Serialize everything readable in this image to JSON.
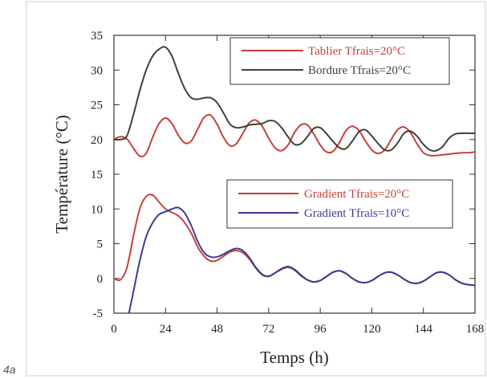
{
  "figure_label": "4a",
  "chart_data": {
    "type": "line",
    "title": "",
    "xlabel": "Temps (h)",
    "ylabel": "Température (°C)",
    "xlim": [
      0,
      168
    ],
    "ylim": [
      -5,
      35
    ],
    "xticks": [
      0,
      24,
      48,
      72,
      96,
      120,
      144,
      168
    ],
    "yticks": [
      -5,
      0,
      5,
      10,
      15,
      20,
      25,
      30,
      35
    ],
    "grid": false,
    "legends": [
      {
        "placement": "top-right",
        "entries": [
          "Tablier Tfrais=20°C",
          "Bordure Tfrais=20°C"
        ]
      },
      {
        "placement": "middle-right",
        "entries": [
          "Gradient Tfrais=20°C",
          "Gradient Tfrais=10°C"
        ]
      }
    ],
    "series": [
      {
        "name": "Tablier Tfrais=20°C",
        "color": "#c8403a",
        "x": [
          0,
          3,
          6,
          9,
          12,
          15,
          18,
          21,
          24,
          27,
          30,
          33,
          36,
          39,
          42,
          45,
          48,
          51,
          54,
          57,
          60,
          63,
          66,
          69,
          72,
          75,
          78,
          81,
          84,
          87,
          90,
          93,
          96,
          99,
          102,
          105,
          108,
          111,
          114,
          117,
          120,
          123,
          126,
          129,
          132,
          135,
          138,
          141,
          144,
          147,
          150,
          153,
          156,
          159,
          162,
          165,
          168
        ],
        "y": [
          20.0,
          20.4,
          20.1,
          18.8,
          17.6,
          18.0,
          20.3,
          22.3,
          23.1,
          22.3,
          20.6,
          19.5,
          19.8,
          21.5,
          23.2,
          23.5,
          22.2,
          20.3,
          19.1,
          19.4,
          20.9,
          22.4,
          22.8,
          21.9,
          20.2,
          18.8,
          18.4,
          19.2,
          21.0,
          22.1,
          22.1,
          20.8,
          19.2,
          18.2,
          18.3,
          19.6,
          21.3,
          21.9,
          21.3,
          19.8,
          18.5,
          18.0,
          18.5,
          20.0,
          21.4,
          21.8,
          21.0,
          19.4,
          18.1,
          17.7,
          17.7,
          17.8,
          17.9,
          18.0,
          18.1,
          18.1,
          18.2
        ]
      },
      {
        "name": "Bordure Tfrais=20°C",
        "color": "#3a4438",
        "x": [
          0,
          3,
          6,
          9,
          12,
          15,
          18,
          21,
          24,
          27,
          30,
          33,
          36,
          39,
          42,
          45,
          48,
          51,
          54,
          57,
          60,
          63,
          66,
          69,
          72,
          75,
          78,
          81,
          84,
          87,
          90,
          93,
          96,
          99,
          102,
          105,
          108,
          111,
          114,
          117,
          120,
          123,
          126,
          129,
          132,
          135,
          138,
          141,
          144,
          147,
          150,
          153,
          156,
          159,
          162,
          165,
          168
        ],
        "y": [
          20.0,
          20.0,
          20.5,
          23.5,
          27.0,
          30.0,
          32.0,
          33.0,
          33.3,
          32.0,
          29.5,
          27.3,
          26.0,
          25.8,
          26.0,
          26.0,
          25.3,
          23.8,
          22.2,
          21.7,
          21.8,
          22.1,
          22.2,
          22.3,
          22.7,
          22.6,
          21.7,
          20.4,
          19.3,
          19.4,
          20.4,
          21.6,
          21.7,
          20.8,
          19.7,
          18.8,
          18.7,
          19.8,
          21.1,
          21.4,
          20.5,
          19.4,
          18.5,
          18.5,
          19.5,
          20.9,
          21.2,
          20.5,
          19.3,
          18.5,
          18.4,
          19.0,
          20.2,
          20.8,
          20.9,
          20.9,
          20.9
        ]
      },
      {
        "name": "Gradient Tfrais=20°C",
        "color": "#c8403a",
        "x": [
          0,
          3,
          6,
          9,
          12,
          15,
          18,
          21,
          24,
          27,
          30,
          33,
          36,
          39,
          42,
          45,
          48,
          51,
          54,
          57,
          60,
          63,
          66,
          69,
          72,
          75,
          78,
          81,
          84,
          87,
          90,
          93,
          96,
          99,
          102,
          105,
          108,
          111,
          114,
          117,
          120,
          123,
          126,
          129,
          132,
          135,
          138,
          141,
          144,
          147,
          150,
          153,
          156,
          159,
          162,
          165,
          168
        ],
        "y": [
          0.0,
          -0.2,
          1.5,
          6.0,
          10.0,
          11.8,
          12.0,
          11.0,
          10.0,
          9.5,
          9.0,
          8.0,
          6.5,
          4.5,
          3.2,
          2.5,
          2.6,
          3.2,
          3.8,
          4.0,
          3.7,
          2.8,
          1.5,
          0.5,
          0.3,
          0.8,
          1.3,
          1.6,
          1.2,
          0.4,
          -0.2,
          -0.5,
          -0.3,
          0.3,
          0.9,
          1.1,
          0.7,
          0.0,
          -0.5,
          -0.6,
          -0.3,
          0.3,
          0.8,
          0.9,
          0.5,
          -0.1,
          -0.6,
          -0.7,
          -0.4,
          0.2,
          0.8,
          0.9,
          0.5,
          -0.2,
          -0.7,
          -0.9,
          -1.0
        ]
      },
      {
        "name": "Gradient Tfrais=10°C",
        "color": "#3a3a9a",
        "x": [
          7,
          9,
          12,
          15,
          18,
          21,
          24,
          27,
          30,
          33,
          36,
          39,
          42,
          45,
          48,
          51,
          54,
          57,
          60,
          63,
          66,
          69,
          72,
          75,
          78,
          81,
          84,
          87,
          90,
          93,
          96,
          99,
          102,
          105,
          108,
          111,
          114,
          117,
          120,
          123,
          126,
          129,
          132,
          135,
          138,
          141,
          144,
          147,
          150,
          153,
          156,
          159,
          162,
          165,
          168
        ],
        "y": [
          -5.0,
          -2.0,
          2.5,
          6.0,
          8.0,
          9.2,
          9.6,
          10.0,
          10.2,
          9.4,
          7.6,
          5.3,
          3.7,
          3.1,
          3.1,
          3.5,
          4.0,
          4.3,
          4.0,
          3.0,
          1.6,
          0.6,
          0.3,
          0.8,
          1.4,
          1.7,
          1.3,
          0.5,
          -0.2,
          -0.5,
          -0.3,
          0.3,
          0.9,
          1.1,
          0.7,
          0.0,
          -0.5,
          -0.6,
          -0.3,
          0.3,
          0.8,
          0.9,
          0.5,
          -0.1,
          -0.6,
          -0.7,
          -0.4,
          0.2,
          0.8,
          0.9,
          0.5,
          -0.2,
          -0.7,
          -0.9,
          -1.0
        ]
      }
    ]
  }
}
